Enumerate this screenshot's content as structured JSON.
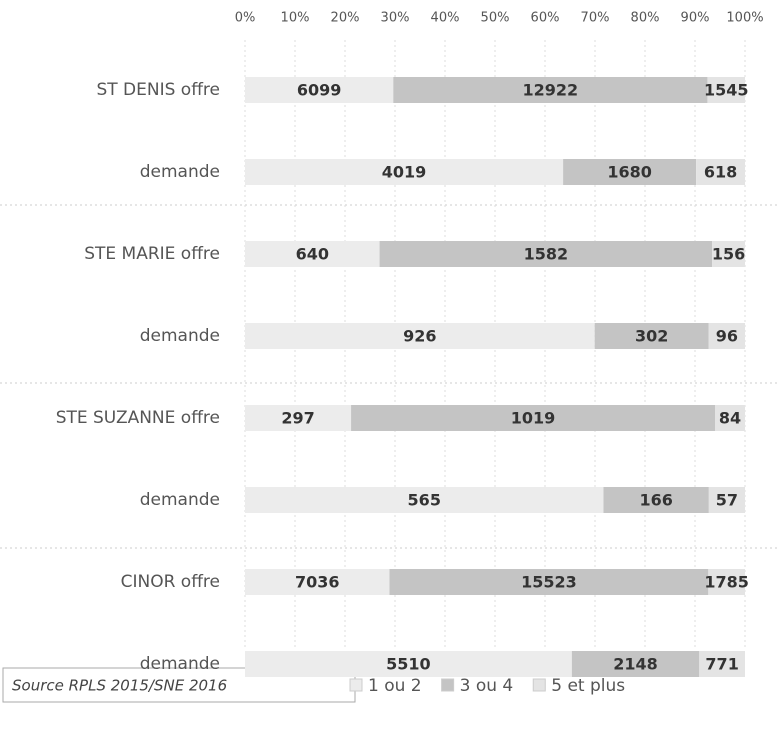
{
  "chart_data": {
    "type": "bar",
    "orientation": "horizontal",
    "stacking": "percent",
    "categories": [
      "ST DENIS offre",
      "demande",
      "STE MARIE offre",
      "demande",
      "STE SUZANNE offre",
      "demande",
      "CINOR offre",
      "demande"
    ],
    "series": [
      {
        "name": "1 ou 2",
        "color": "#ececec",
        "values": [
          6099,
          4019,
          640,
          926,
          297,
          565,
          7036,
          5510
        ]
      },
      {
        "name": "3 ou 4",
        "color": "#c4c4c4",
        "values": [
          12922,
          1680,
          1582,
          302,
          1019,
          166,
          15523,
          2148
        ]
      },
      {
        "name": "5 et plus",
        "color": "#e4e4e4",
        "values": [
          1545,
          618,
          156,
          96,
          84,
          57,
          1785,
          771
        ]
      }
    ],
    "xlim": [
      0,
      100
    ],
    "xticks": [
      {
        "value": 0,
        "label": "0%"
      },
      {
        "value": 10,
        "label": "10%"
      },
      {
        "value": 20,
        "label": "20%"
      },
      {
        "value": 30,
        "label": "30%"
      },
      {
        "value": 40,
        "label": "40%"
      },
      {
        "value": 50,
        "label": "50%"
      },
      {
        "value": 60,
        "label": "60%"
      },
      {
        "value": 70,
        "label": "70%"
      },
      {
        "value": 80,
        "label": "80%"
      },
      {
        "value": 90,
        "label": "90%"
      },
      {
        "value": 100,
        "label": "100%"
      }
    ],
    "grid": true,
    "legend": "bottom",
    "note": "Source RPLS 2015/SNE 2016"
  }
}
